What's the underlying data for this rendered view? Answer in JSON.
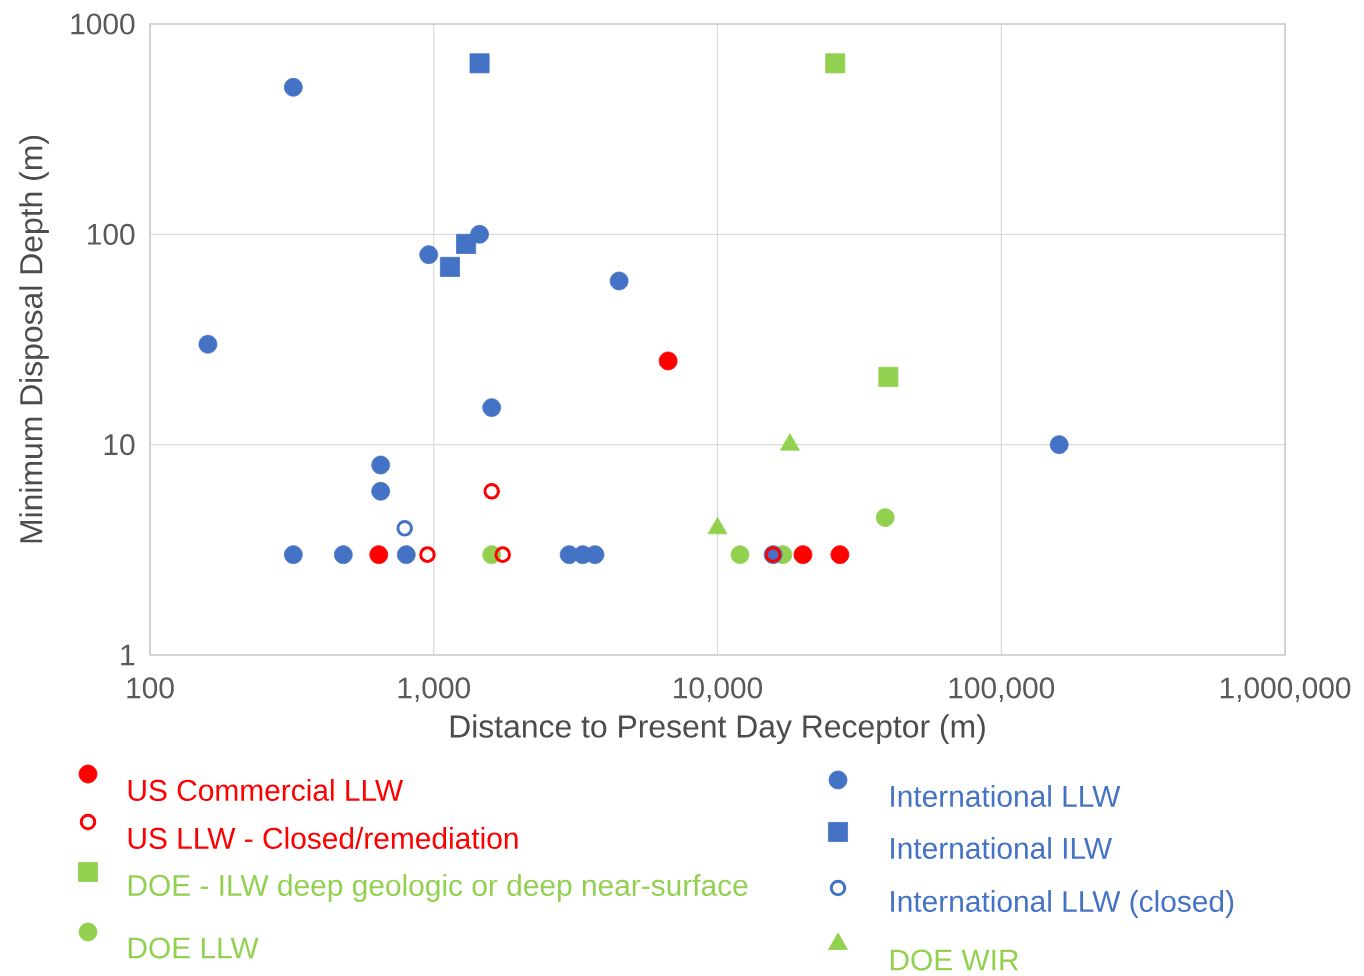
{
  "chart_data": {
    "type": "scatter",
    "xlabel": "Distance to Present Day Receptor (m)",
    "ylabel": "Minimum Disposal Depth (m)",
    "log": "xy",
    "grid": true,
    "legend": "bottom",
    "xlim": [
      100,
      1000000
    ],
    "ylim": [
      1,
      1000
    ],
    "xticks": [
      100,
      {
        "value": 1000,
        "label": "1,000"
      },
      {
        "value": 10000,
        "label": "10,000"
      },
      {
        "value": 100000,
        "label": "100,000"
      },
      {
        "value": 1000000,
        "label": "1,000,000"
      }
    ],
    "yticks": [
      1,
      10,
      100,
      1000
    ],
    "series": [
      {
        "name": "US Commercial LLW",
        "color": "#ff0000",
        "marker": "circle",
        "x": [
          6700,
          640,
          20000,
          27000
        ],
        "values": [
          25,
          3,
          3,
          3
        ]
      },
      {
        "name": "US LLW - Closed/remediation",
        "color": "#ff0000",
        "marker": "circle-open",
        "x": [
          1600,
          950,
          1750,
          15700
        ],
        "values": [
          6,
          3,
          3,
          3
        ]
      },
      {
        "name": "DOE - ILW deep geologic or deep near-surface",
        "color": "#92d050",
        "marker": "square",
        "x": [
          26000,
          40000
        ],
        "values": [
          650,
          21
        ]
      },
      {
        "name": "DOE LLW",
        "color": "#92d050",
        "marker": "circle",
        "x": [
          39000,
          1600,
          12000,
          17000
        ],
        "values": [
          4.5,
          3,
          3,
          3
        ]
      },
      {
        "name": "International LLW",
        "color": "#4472c4",
        "marker": "circle",
        "x": [
          320,
          160,
          960,
          1450,
          4500,
          1600,
          650,
          650,
          320,
          480,
          800,
          3000,
          3350,
          3700,
          15700,
          160000
        ],
        "values": [
          500,
          30,
          80,
          100,
          60,
          15,
          8,
          6,
          3,
          3,
          3,
          3,
          3,
          3,
          3,
          10
        ]
      },
      {
        "name": "International ILW",
        "color": "#4472c4",
        "marker": "square",
        "x": [
          1450,
          1300,
          1140
        ],
        "values": [
          650,
          90,
          70
        ]
      },
      {
        "name": "International LLW (closed)",
        "color": "#4472c4",
        "marker": "circle-open",
        "x": [
          790
        ],
        "values": [
          4
        ]
      },
      {
        "name": "DOE WIR",
        "color": "#92d050",
        "marker": "triangle",
        "x": [
          10000,
          18000
        ],
        "values": [
          4,
          10
        ]
      }
    ]
  }
}
